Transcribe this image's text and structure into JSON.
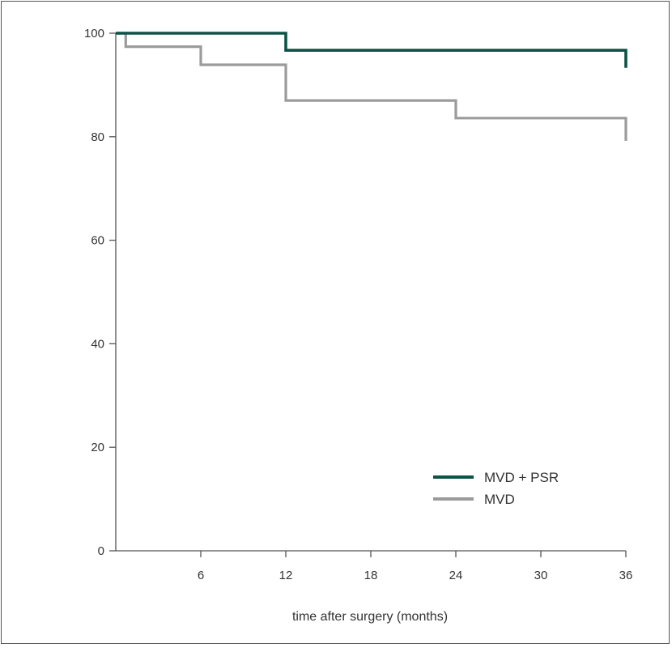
{
  "chart_data": {
    "type": "line",
    "step": true,
    "title": "",
    "xlabel": "time after surgery (months)",
    "ylabel": "",
    "xlim": [
      0,
      36
    ],
    "ylim": [
      0,
      100
    ],
    "xticks": [
      6,
      12,
      18,
      24,
      30,
      36
    ],
    "yticks": [
      0,
      20,
      40,
      60,
      80,
      100
    ],
    "grid": false,
    "legend_position": "bottom-right",
    "series": [
      {
        "name": "MVD + PSR",
        "color": "#0b5345",
        "x": [
          0,
          12,
          12,
          36,
          36
        ],
        "y": [
          100,
          100,
          96.7,
          96.7,
          93.3
        ]
      },
      {
        "name": "MVD",
        "color": "#9b9b9b",
        "x": [
          0,
          0.7,
          0.7,
          6,
          6,
          12,
          12,
          24,
          24,
          36,
          36
        ],
        "y": [
          100,
          100,
          97.4,
          97.4,
          93.9,
          93.9,
          87.0,
          87.0,
          83.6,
          83.6,
          79.2
        ]
      }
    ]
  }
}
